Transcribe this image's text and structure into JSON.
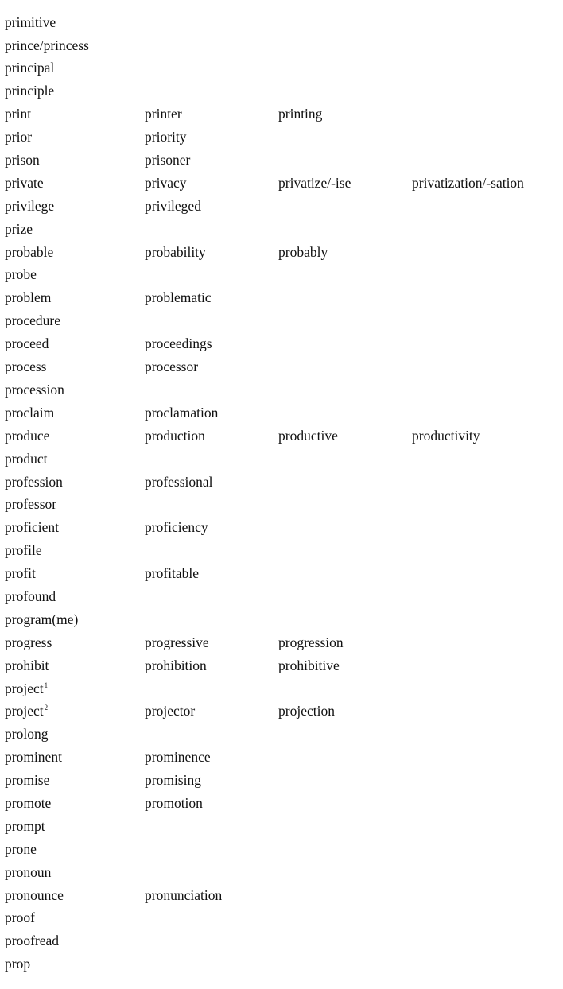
{
  "entries": [
    {
      "words": [
        "primitive"
      ]
    },
    {
      "words": [
        "prince/princess"
      ]
    },
    {
      "words": [
        "principal"
      ]
    },
    {
      "words": [
        "principle"
      ]
    },
    {
      "words": [
        "print",
        "printer",
        "printing"
      ]
    },
    {
      "words": [
        "prior",
        "priority"
      ]
    },
    {
      "words": [
        "prison",
        "prisoner"
      ]
    },
    {
      "words": [
        "private",
        "privacy",
        "privatize/-ise",
        "privatization/-sation"
      ]
    },
    {
      "words": [
        "privilege",
        "privileged"
      ]
    },
    {
      "words": [
        "prize"
      ]
    },
    {
      "words": [
        "probable",
        "probability",
        "probably"
      ]
    },
    {
      "words": [
        "probe"
      ]
    },
    {
      "words": [
        "problem",
        "problematic"
      ]
    },
    {
      "words": [
        "procedure"
      ]
    },
    {
      "words": [
        "proceed",
        "proceedings"
      ]
    },
    {
      "words": [
        "process",
        "processor"
      ]
    },
    {
      "words": [
        "procession"
      ]
    },
    {
      "words": [
        "proclaim",
        "proclamation"
      ]
    },
    {
      "words": [
        "produce",
        "production",
        "productive",
        "productivity"
      ]
    },
    {
      "words": [
        "product"
      ]
    },
    {
      "words": [
        "profession",
        "professional"
      ]
    },
    {
      "words": [
        "professor"
      ]
    },
    {
      "words": [
        "proficient",
        "proficiency"
      ]
    },
    {
      "words": [
        "profile"
      ]
    },
    {
      "words": [
        "profit",
        "profitable"
      ]
    },
    {
      "words": [
        "profound"
      ]
    },
    {
      "words": [
        "program(me)"
      ]
    },
    {
      "words": [
        "progress",
        "progressive",
        "progression"
      ]
    },
    {
      "words": [
        "prohibit",
        "prohibition",
        "prohibitive"
      ]
    },
    {
      "words": [
        "project"
      ],
      "homograph": "1"
    },
    {
      "words": [
        "project",
        "projector",
        "projection"
      ],
      "homograph": "2"
    },
    {
      "words": [
        "prolong"
      ]
    },
    {
      "words": [
        "prominent",
        "prominence"
      ]
    },
    {
      "words": [
        "promise",
        "promising"
      ]
    },
    {
      "words": [
        "promote",
        "promotion"
      ]
    },
    {
      "words": [
        "prompt"
      ]
    },
    {
      "words": [
        "prone"
      ]
    },
    {
      "words": [
        "pronoun"
      ]
    },
    {
      "words": [
        "pronounce",
        "pronunciation"
      ]
    },
    {
      "words": [
        "proof"
      ]
    },
    {
      "words": [
        "proofread"
      ]
    },
    {
      "words": [
        "prop"
      ]
    }
  ]
}
